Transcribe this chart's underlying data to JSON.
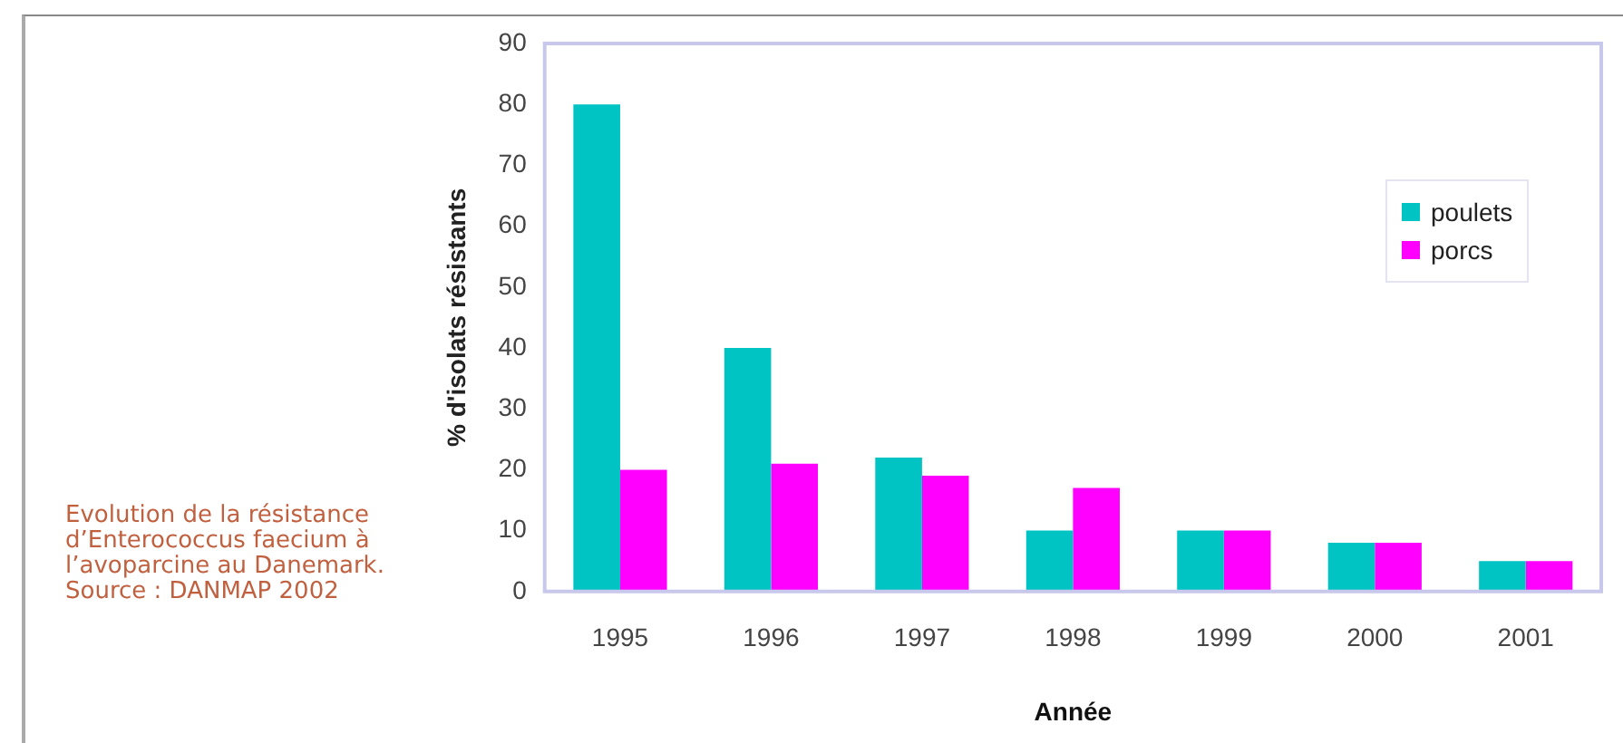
{
  "chart_data": {
    "type": "bar",
    "categories": [
      "1995",
      "1996",
      "1997",
      "1998",
      "1999",
      "2000",
      "2001"
    ],
    "series": [
      {
        "name": "poulets",
        "color": "#00c4c4",
        "values": [
          80,
          40,
          22,
          10,
          10,
          8,
          5
        ]
      },
      {
        "name": "porcs",
        "color": "#ff00ff",
        "values": [
          20,
          21,
          19,
          17,
          10,
          8,
          5
        ]
      }
    ],
    "xlabel": "Année",
    "ylabel": "% d'isolats résistants",
    "ylim": [
      0,
      90
    ],
    "yticks": [
      0,
      10,
      20,
      30,
      40,
      50,
      60,
      70,
      80,
      90
    ],
    "grid": false,
    "legend": "right",
    "annotations": [
      "Evolution de la résistance d’Enterococcus faecium à l’avoparcine au Danemark.",
      "Source : DANMAP 2002"
    ]
  }
}
